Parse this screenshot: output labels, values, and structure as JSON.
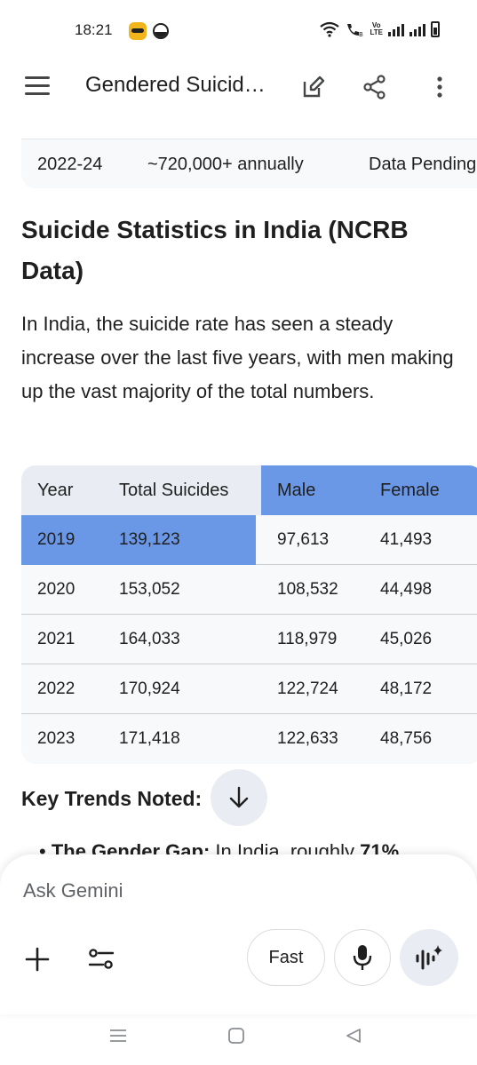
{
  "status": {
    "time": "18:21",
    "volte": "Vo\nLTE"
  },
  "app_bar": {
    "title": "Gendered Suicid…"
  },
  "prev_table": {
    "cells": [
      "2022-24",
      "~720,000+ annually",
      "Data Pending"
    ]
  },
  "section": {
    "heading": "Suicide Statistics in India (NCRB Data)",
    "paragraph": "In India, the suicide rate has seen a steady increase over the last five years, with men making up the vast majority of the total numbers."
  },
  "table": {
    "headers": [
      "Year",
      "Total Suicides",
      "Male",
      "Female"
    ],
    "rows": [
      [
        "2019",
        "139,123",
        "97,613",
        "41,493"
      ],
      [
        "2020",
        "153,052",
        "108,532",
        "44,498"
      ],
      [
        "2021",
        "164,033",
        "118,979",
        "45,026"
      ],
      [
        "2022",
        "170,924",
        "122,724",
        "48,172"
      ],
      [
        "2023",
        "171,418",
        "122,633",
        "48,756"
      ]
    ],
    "highlight_color": "#6b98e6"
  },
  "trends": {
    "heading": "Key Trends Noted:",
    "bullet_partial": "The Gender Gap: In India, roughly 71%"
  },
  "input": {
    "placeholder": "Ask Gemini",
    "fast_label": "Fast"
  }
}
